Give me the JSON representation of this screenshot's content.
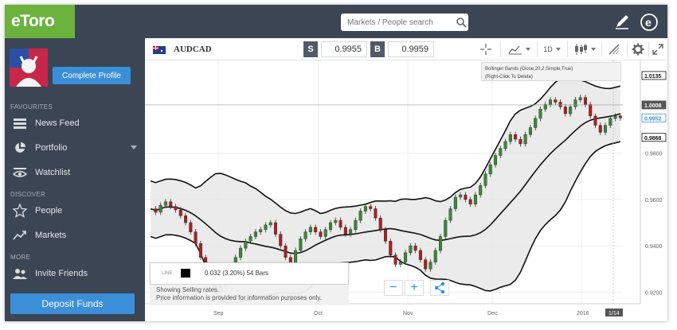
{
  "brand": {
    "logo_text": "eToro",
    "logo_color": "#6cb33e"
  },
  "header": {
    "search_placeholder": "Markets / People search",
    "bg_color": "#3c4553"
  },
  "sidebar": {
    "complete_profile_label": "Complete Profile",
    "sections": {
      "favourites": "FAVOURITES",
      "discover": "DISCOVER",
      "more": "MORE"
    },
    "items": [
      {
        "label": "News Feed",
        "icon": "news-icon"
      },
      {
        "label": "Portfolio",
        "icon": "pie-chart-icon"
      },
      {
        "label": "Watchlist",
        "icon": "eye-icon"
      },
      {
        "label": "People",
        "icon": "star-icon"
      },
      {
        "label": "Markets",
        "icon": "trend-icon"
      },
      {
        "label": "Invite Friends",
        "icon": "people-icon"
      }
    ],
    "deposit_label": "Deposit Funds",
    "accent_color": "#3b8fd9"
  },
  "toolbar": {
    "symbol": "AUDCAD",
    "sell_label": "S",
    "sell_price": "0.9955",
    "buy_label": "B",
    "buy_price": "0.9959",
    "timeframe": "1D"
  },
  "tooltip": {
    "line1": "Bollinger Bands (Close,20,2,Simple,True)",
    "line2": "(Right-Click To Delete)"
  },
  "legend": {
    "label": "LINE:",
    "value": "0.032 (3.20%) 54 Bars"
  },
  "notice": {
    "line1": "Showing Selling rates.",
    "line2": "Price information is provided for information purposes only."
  },
  "chart_data": {
    "type": "candlestick",
    "indicator": "Bollinger Bands (Close,20,2,Simple,True)",
    "x_ticks": [
      "Sep",
      "Oct",
      "Nov",
      "Dec",
      "2016"
    ],
    "y_ticks": [
      "0.9200",
      "0.9400",
      "0.9600",
      "0.9800"
    ],
    "price_labels": [
      "1.0135",
      "1.0008",
      "0.9952",
      "0.9868"
    ],
    "cursor_label": "1/14",
    "ylim": [
      0.915,
      1.02
    ],
    "up_color": "#3a8a3a",
    "down_color": "#b02020",
    "close": [
      0.956,
      0.9545,
      0.9575,
      0.959,
      0.957,
      0.9555,
      0.953,
      0.95,
      0.946,
      0.941,
      0.935,
      0.93,
      0.925,
      0.92,
      0.923,
      0.927,
      0.931,
      0.935,
      0.939,
      0.942,
      0.944,
      0.946,
      0.947,
      0.949,
      0.95,
      0.945,
      0.94,
      0.935,
      0.933,
      0.938,
      0.943,
      0.946,
      0.948,
      0.946,
      0.944,
      0.947,
      0.95,
      0.951,
      0.948,
      0.945,
      0.947,
      0.951,
      0.955,
      0.957,
      0.956,
      0.952,
      0.947,
      0.942,
      0.936,
      0.932,
      0.933,
      0.937,
      0.94,
      0.938,
      0.934,
      0.93,
      0.933,
      0.938,
      0.944,
      0.951,
      0.956,
      0.961,
      0.962,
      0.96,
      0.958,
      0.962,
      0.966,
      0.971,
      0.975,
      0.979,
      0.982,
      0.985,
      0.988,
      0.986,
      0.984,
      0.988,
      0.991,
      0.995,
      0.999,
      1.001,
      1.003,
      1.002,
      1.0,
      0.997,
      1.0,
      1.003,
      1.004,
      1.001,
      0.996,
      0.992,
      0.989,
      0.992,
      0.995,
      0.996,
      0.9952
    ]
  }
}
